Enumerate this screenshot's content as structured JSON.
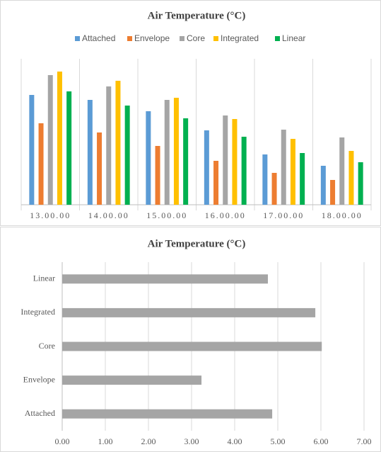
{
  "chart_data": [
    {
      "type": "bar",
      "title": "Air Temperature (°C)",
      "categories": [
        "13.00.00",
        "14.00.00",
        "15.00.00",
        "16.00.00",
        "17.00.00",
        "18.00.00"
      ],
      "series": [
        {
          "name": "Attached",
          "color": "#5b9bd5",
          "values": [
            155,
            148,
            132,
            105,
            71,
            55
          ]
        },
        {
          "name": "Envelope",
          "color": "#ed7d31",
          "values": [
            115,
            102,
            83,
            62,
            45,
            35
          ]
        },
        {
          "name": "Core",
          "color": "#a5a5a5",
          "values": [
            183,
            167,
            148,
            126,
            106,
            95
          ]
        },
        {
          "name": "Integrated",
          "color": "#ffc000",
          "values": [
            188,
            175,
            151,
            121,
            93,
            76
          ]
        },
        {
          "name": "Linear",
          "color": "#00b050",
          "values": [
            160,
            140,
            122,
            96,
            73,
            60
          ]
        }
      ],
      "legend": "top"
    },
    {
      "type": "hbar",
      "title": "Air Temperature (°C)",
      "categories": [
        "Attached",
        "Envelope",
        "Core",
        "Integrated",
        "Linear"
      ],
      "values": [
        4.87,
        3.23,
        6.02,
        5.87,
        4.77
      ],
      "color": "#a5a5a5",
      "xlim": [
        0,
        7
      ],
      "xticks": [
        {
          "value": 0,
          "label": "0.00"
        },
        {
          "value": 1,
          "label": "1.00"
        },
        {
          "value": 2,
          "label": "2.00"
        },
        {
          "value": 3,
          "label": "3.00"
        },
        {
          "value": 4,
          "label": "4.00"
        },
        {
          "value": 5,
          "label": "5.00"
        },
        {
          "value": 6,
          "label": "6.00"
        },
        {
          "value": 7,
          "label": "7.00"
        }
      ],
      "grid": true
    }
  ]
}
